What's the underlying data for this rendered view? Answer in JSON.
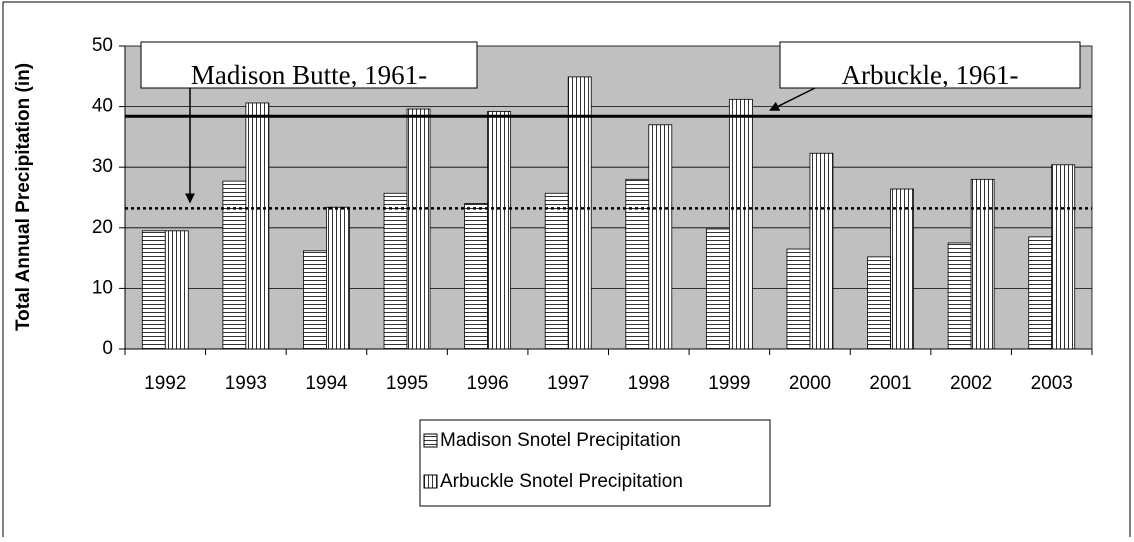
{
  "chart_data": {
    "type": "bar",
    "y_label": "Total Annual Precipitation (in)",
    "categories": [
      "1992",
      "1993",
      "1994",
      "1995",
      "1996",
      "1997",
      "1998",
      "1999",
      "2000",
      "2001",
      "2002",
      "2003"
    ],
    "series": [
      {
        "name": "Madison Snotel Precipitation",
        "color": "#ffffff",
        "pattern": "horizontal",
        "values": [
          19.5,
          27.7,
          16.2,
          25.7,
          24.0,
          25.7,
          28.0,
          19.8,
          16.5,
          15.2,
          17.5,
          18.5
        ]
      },
      {
        "name": "Arbuckle Snotel Precipitation",
        "color": "#ffffff",
        "pattern": "vertical",
        "values": [
          19.5,
          40.6,
          23.4,
          39.6,
          39.2,
          44.9,
          37.0,
          41.2,
          32.3,
          26.4,
          28.0,
          30.4
        ]
      }
    ],
    "reference_lines": [
      {
        "value": 38.4,
        "style": "solid"
      },
      {
        "value": 23.2,
        "style": "dotted"
      }
    ],
    "annotations": [
      {
        "text": "Madison Butte, 1961-",
        "points_to": 1
      },
      {
        "text": "Arbuckle, 1961-",
        "points_to": 0
      }
    ],
    "ylim": [
      0,
      50
    ],
    "yticks": [
      0,
      10,
      20,
      30,
      40,
      50
    ],
    "grid": true,
    "background": "#c0c0c0",
    "legend": "bottom"
  }
}
